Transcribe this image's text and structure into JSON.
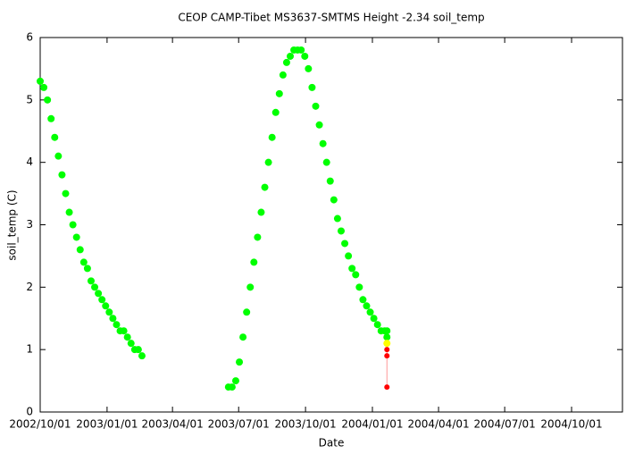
{
  "chart_data": {
    "type": "scatter",
    "title": "CEOP CAMP-Tibet MS3637-SMTMS Height -2.34 soil_temp",
    "x_label": "Date",
    "y_label": "soil_temp (C)",
    "xlim": [
      "2002/10/01",
      "2004/12/10"
    ],
    "ylim": [
      0,
      6
    ],
    "xticks": [
      "2002/10/01",
      "2003/01/01",
      "2003/04/01",
      "2003/07/01",
      "2003/10/01",
      "2004/01/01",
      "2004/04/01",
      "2004/07/01",
      "2004/10/01"
    ],
    "yticks": [
      0,
      1,
      2,
      3,
      4,
      5,
      6
    ],
    "grid": false,
    "series": [
      {
        "color": "#00ff00",
        "style": "points",
        "x": [
          "2002/10/01",
          "2002/10/06",
          "2002/10/11",
          "2002/10/16",
          "2002/10/21",
          "2002/10/26",
          "2002/10/31",
          "2002/11/05",
          "2002/11/10",
          "2002/11/15",
          "2002/11/20",
          "2002/11/25",
          "2002/11/30",
          "2002/12/05",
          "2002/12/10",
          "2002/12/15",
          "2002/12/20",
          "2002/12/25",
          "2002/12/30",
          "2003/01/04",
          "2003/01/09",
          "2003/01/14",
          "2003/01/19",
          "2003/01/24",
          "2003/01/29",
          "2003/02/03",
          "2003/02/08",
          "2003/02/13",
          "2003/02/18",
          "2003/06/17",
          "2003/06/22",
          "2003/06/27",
          "2003/07/02",
          "2003/07/07",
          "2003/07/12",
          "2003/07/17",
          "2003/07/22",
          "2003/07/27",
          "2003/08/01",
          "2003/08/06",
          "2003/08/11",
          "2003/08/16",
          "2003/08/21",
          "2003/08/26",
          "2003/08/31",
          "2003/09/05",
          "2003/09/10",
          "2003/09/15",
          "2003/09/20",
          "2003/09/25",
          "2003/09/30",
          "2003/10/05",
          "2003/10/10",
          "2003/10/15",
          "2003/10/20",
          "2003/10/25",
          "2003/10/30",
          "2003/11/04",
          "2003/11/09",
          "2003/11/14",
          "2003/11/19",
          "2003/11/24",
          "2003/11/29",
          "2003/12/04",
          "2003/12/09",
          "2003/12/14",
          "2003/12/19",
          "2003/12/24",
          "2003/12/29",
          "2004/01/03",
          "2004/01/08",
          "2004/01/13",
          "2004/01/18",
          "2004/01/21",
          "2004/01/21"
        ],
        "values": [
          5.3,
          5.2,
          5.0,
          4.7,
          4.4,
          4.1,
          3.8,
          3.5,
          3.2,
          3.0,
          2.8,
          2.6,
          2.4,
          2.3,
          2.1,
          2.0,
          1.9,
          1.8,
          1.7,
          1.6,
          1.5,
          1.4,
          1.3,
          1.3,
          1.2,
          1.1,
          1.0,
          1.0,
          0.9,
          0.4,
          0.4,
          0.5,
          0.8,
          1.2,
          1.6,
          2.0,
          2.4,
          2.8,
          3.2,
          3.6,
          4.0,
          4.4,
          4.8,
          5.1,
          5.4,
          5.6,
          5.7,
          5.8,
          5.8,
          5.8,
          5.7,
          5.5,
          5.2,
          4.9,
          4.6,
          4.3,
          4.0,
          3.7,
          3.4,
          3.1,
          2.9,
          2.7,
          2.5,
          2.3,
          2.2,
          2.0,
          1.8,
          1.7,
          1.6,
          1.5,
          1.4,
          1.3,
          1.3,
          1.3,
          1.2
        ]
      },
      {
        "color": "#ffff00",
        "style": "points",
        "x": [
          "2004/01/21"
        ],
        "values": [
          1.1
        ]
      },
      {
        "color": "#ff0000",
        "line_color": "#ff9999",
        "style": "linespoints",
        "x": [
          "2004/01/21",
          "2004/01/21",
          "2004/01/21"
        ],
        "values": [
          1.0,
          0.9,
          0.4
        ]
      }
    ]
  }
}
